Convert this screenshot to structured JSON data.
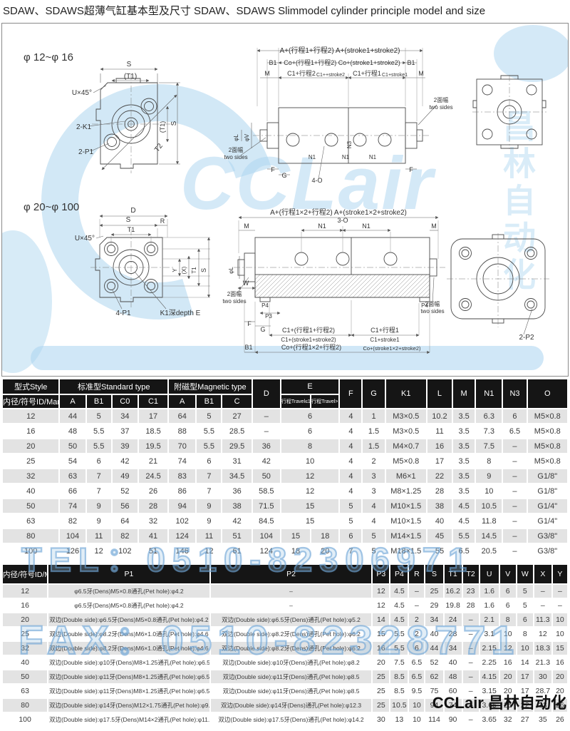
{
  "title": "SDAW、SDAWS超薄气缸基本型及尺寸 SDAW、SDAWS  Slimmodel cylinder principle model and size",
  "watermarks": {
    "tel": "TEL：0510-82306971",
    "fax": "FAX：0510-82328771",
    "brand_bottom": "CCLair 昌林自动化",
    "logo_text": "CCLair",
    "logo_cjk": "昌林自动化",
    "logo_color": "#a6d1ee",
    "outline_color": "#6ea5d7"
  },
  "diagram": {
    "range1": "φ 12~φ 16",
    "range2": "φ 20~φ 100",
    "labels": [
      [
        "φ 12~φ 16",
        30,
        52,
        15,
        "s",
        0
      ],
      [
        "S",
        178,
        60,
        10,
        "m",
        0
      ],
      [
        "(T1)",
        180,
        77,
        10,
        "m",
        0
      ],
      [
        "U×45°",
        126,
        100,
        10,
        "e",
        0
      ],
      [
        "2-K1",
        104,
        148,
        10,
        "s",
        0
      ],
      [
        "2-P1",
        107,
        183,
        10,
        "s",
        0
      ],
      [
        "(T1)",
        228,
        145,
        9,
        "m",
        -90
      ],
      [
        "S",
        244,
        140,
        10,
        "m",
        -90
      ],
      [
        "T2",
        222,
        176,
        10,
        "m",
        -52
      ],
      [
        "A+(行程1+行程2)  A+(stroke1+stroke2)",
        474,
        41,
        10,
        "m",
        0
      ],
      [
        "B1",
        380,
        58,
        9,
        "m",
        0
      ],
      [
        "Co+(行程1+行程2)  Co+(stroke1+stroke2)",
        477,
        58,
        9,
        "m",
        0
      ],
      [
        "B1",
        574,
        58,
        9,
        "m",
        0
      ],
      [
        "M",
        372,
        73,
        9,
        "m",
        0
      ],
      [
        "C1+行程2",
        420,
        73,
        9,
        "m",
        0
      ],
      [
        "C1++stroke2",
        461,
        74,
        7,
        "m",
        0
      ],
      [
        "C1+行程1",
        512,
        73,
        9,
        "m",
        0
      ],
      [
        "C1+stroke1",
        551,
        74,
        7,
        "m",
        0
      ],
      [
        "M",
        588,
        73,
        9,
        "m",
        0
      ],
      [
        "φL",
        331,
        160,
        8,
        "m",
        -90
      ],
      [
        "φV",
        346,
        160,
        8,
        "m",
        -90
      ],
      [
        "N3",
        490,
        170,
        8,
        "m",
        -90
      ],
      [
        "N1",
        435,
        190,
        8,
        "m",
        0
      ],
      [
        "N1",
        482,
        190,
        8,
        "m",
        0
      ],
      [
        "N1",
        520,
        190,
        8,
        "m",
        0
      ],
      [
        "F",
        380,
        208,
        9,
        "m",
        0
      ],
      [
        "G",
        396,
        216,
        9,
        "m",
        0
      ],
      [
        "4-O",
        442,
        223,
        9,
        "m",
        0
      ],
      [
        "F",
        574,
        208,
        9,
        "m",
        0
      ],
      [
        "2面幅",
        328,
        180,
        8,
        "m",
        0
      ],
      [
        "two sides",
        328,
        190,
        8,
        "m",
        0
      ],
      [
        "2面幅",
        616,
        110,
        8,
        "m",
        0
      ],
      [
        "two sides",
        616,
        120,
        8,
        "m",
        0
      ],
      [
        "φ 20~φ 100",
        30,
        262,
        15,
        "s",
        0
      ],
      [
        "D",
        184,
        265,
        10,
        "m",
        0
      ],
      [
        "S",
        177,
        278,
        10,
        "m",
        0
      ],
      [
        "R",
        225,
        280,
        9,
        "m",
        0
      ],
      [
        "T1",
        181,
        292,
        9,
        "m",
        0
      ],
      [
        "U×45°",
        130,
        304,
        10,
        "e",
        0
      ],
      [
        "4-P1",
        170,
        409,
        10,
        "m",
        0
      ],
      [
        "K1深depth E",
        250,
        409,
        10,
        "m",
        0
      ],
      [
        "Y",
        245,
        346,
        8,
        "m",
        -90
      ],
      [
        "(X)",
        258,
        346,
        8,
        "m",
        -90
      ],
      [
        "T1",
        272,
        346,
        8,
        "m",
        -90
      ],
      [
        "S",
        286,
        346,
        9,
        "m",
        -90
      ],
      [
        "A+(行程1×2+行程2)  A+(stroke1×2+stroke2)",
        472,
        268,
        10,
        "m",
        0
      ],
      [
        "M",
        343,
        287,
        9,
        "m",
        0
      ],
      [
        "N1",
        449,
        287,
        9,
        "m",
        0
      ],
      [
        "3-O",
        478,
        279,
        9,
        "m",
        0
      ],
      [
        "N1",
        511,
        287,
        9,
        "m",
        0
      ],
      [
        "M",
        606,
        287,
        9,
        "m",
        0
      ],
      [
        "φL",
        324,
        346,
        8,
        "m",
        -90
      ],
      [
        "W",
        342,
        367,
        9,
        "m",
        0
      ],
      [
        "2面幅",
        326,
        382,
        8,
        "m",
        0
      ],
      [
        "two sides",
        326,
        392,
        8,
        "m",
        0
      ],
      [
        "2面幅",
        604,
        396,
        8,
        "m",
        0
      ],
      [
        "two sides",
        604,
        406,
        8,
        "m",
        0
      ],
      [
        "P4",
        369,
        398,
        8,
        "m",
        0
      ],
      [
        "P4",
        593,
        398,
        8,
        "m",
        0
      ],
      [
        "P3",
        374,
        413,
        8,
        "m",
        0
      ],
      [
        "F",
        347,
        424,
        9,
        "m",
        0
      ],
      [
        "G",
        366,
        432,
        9,
        "m",
        0
      ],
      [
        "C1+(行程1+行程2)",
        430,
        433,
        9,
        "m",
        0
      ],
      [
        "C1+(stroke1+stroke2)",
        430,
        446,
        8,
        "m",
        0
      ],
      [
        "C1+行程1",
        537,
        433,
        9,
        "m",
        0
      ],
      [
        "C1+stroke1",
        537,
        446,
        8,
        "m",
        0
      ],
      [
        "B1",
        346,
        457,
        9,
        "m",
        0
      ],
      [
        "Co+(行程1×2+行程2)",
        434,
        457,
        9,
        "m",
        0
      ],
      [
        "Co+(stroke1×2+stroke2)",
        547,
        458,
        7.5,
        "m",
        0
      ],
      [
        "2-P2",
        736,
        443,
        10,
        "m",
        0
      ]
    ]
  },
  "table1": {
    "style_header": "型式Style",
    "id_header": "内径/符号ID/Mark",
    "standard_header": "标准型Standard type",
    "magnetic_header": "附磁型Magnetic type",
    "std_cols": [
      "A",
      "B1",
      "C0",
      "C1"
    ],
    "mag_cols": [
      "A",
      "B1",
      "C"
    ],
    "d_header": "D",
    "e_header": "E",
    "e_sub": [
      "行程Travel≤10",
      "行程Travel>10"
    ],
    "single_cols": [
      "F",
      "G",
      "K1",
      "L",
      "M",
      "N1",
      "N3",
      "O"
    ],
    "rows": [
      {
        "id": "12",
        "cells": [
          "44",
          "5",
          "34",
          "17",
          "64",
          "5",
          "27",
          "–"
        ],
        "e": [
          "6"
        ],
        "rest": [
          "4",
          "1",
          "M3×0.5",
          "10.2",
          "3.5",
          "6.3",
          "6",
          "M5×0.8"
        ]
      },
      {
        "id": "16",
        "cells": [
          "48",
          "5.5",
          "37",
          "18.5",
          "88",
          "5.5",
          "28.5",
          "–"
        ],
        "e": [
          "6"
        ],
        "rest": [
          "4",
          "1.5",
          "M3×0.5",
          "11",
          "3.5",
          "7.3",
          "6.5",
          "M5×0.8"
        ]
      },
      {
        "id": "20",
        "cells": [
          "50",
          "5.5",
          "39",
          "19.5",
          "70",
          "5.5",
          "29.5",
          "36"
        ],
        "e": [
          "8"
        ],
        "rest": [
          "4",
          "1.5",
          "M4×0.7",
          "16",
          "3.5",
          "7.5",
          "–",
          "M5×0.8"
        ]
      },
      {
        "id": "25",
        "cells": [
          "54",
          "6",
          "42",
          "21",
          "74",
          "6",
          "31",
          "42"
        ],
        "e": [
          "10"
        ],
        "rest": [
          "4",
          "2",
          "M5×0.8",
          "17",
          "3.5",
          "8",
          "–",
          "M5×0.8"
        ]
      },
      {
        "id": "32",
        "cells": [
          "63",
          "7",
          "49",
          "24.5",
          "83",
          "7",
          "34.5",
          "50"
        ],
        "e": [
          "12"
        ],
        "rest": [
          "4",
          "3",
          "M6×1",
          "22",
          "3.5",
          "9",
          "–",
          "G1/8\""
        ]
      },
      {
        "id": "40",
        "cells": [
          "66",
          "7",
          "52",
          "26",
          "86",
          "7",
          "36",
          "58.5"
        ],
        "e": [
          "12"
        ],
        "rest": [
          "4",
          "3",
          "M8×1.25",
          "28",
          "3.5",
          "10",
          "–",
          "G1/8\""
        ]
      },
      {
        "id": "50",
        "cells": [
          "74",
          "9",
          "56",
          "28",
          "94",
          "9",
          "38",
          "71.5"
        ],
        "e": [
          "15"
        ],
        "rest": [
          "5",
          "4",
          "M10×1.5",
          "38",
          "4.5",
          "10.5",
          "–",
          "G1/4\""
        ]
      },
      {
        "id": "63",
        "cells": [
          "82",
          "9",
          "64",
          "32",
          "102",
          "9",
          "42",
          "84.5"
        ],
        "e": [
          "15"
        ],
        "rest": [
          "5",
          "4",
          "M10×1.5",
          "40",
          "4.5",
          "11.8",
          "–",
          "G1/4\""
        ]
      },
      {
        "id": "80",
        "cells": [
          "104",
          "11",
          "82",
          "41",
          "124",
          "11",
          "51",
          "104"
        ],
        "e": [
          "15",
          "18"
        ],
        "rest": [
          "6",
          "5",
          "M14×1.5",
          "45",
          "5.5",
          "14.5",
          "–",
          "G3/8\""
        ]
      },
      {
        "id": "100",
        "cells": [
          "126",
          "12",
          "102",
          "51",
          "146",
          "12",
          "61",
          "124"
        ],
        "e": [
          "18",
          "20"
        ],
        "rest": [
          "7",
          "5",
          "M18×1.5",
          "55",
          "6.5",
          "20.5",
          "–",
          "G3/8\""
        ]
      }
    ]
  },
  "table2": {
    "id_header": "内径/符号ID/Mark",
    "p_headers": [
      "P1",
      "P2"
    ],
    "dim_headers": [
      "P3",
      "P4",
      "R",
      "S",
      "T1",
      "T2",
      "U",
      "V",
      "W",
      "X",
      "Y"
    ],
    "rows": [
      {
        "id": "12",
        "p1": "φ6.5牙(Dens)M5×0.8通孔(Pet hole):φ4.2",
        "p2": "–",
        "vals": [
          "12",
          "4.5",
          "–",
          "25",
          "16.2",
          "23",
          "1.6",
          "6",
          "5",
          "–",
          "–"
        ]
      },
      {
        "id": "16",
        "p1": "φ6.5牙(Dens)M5×0.8通孔(Pet hole):φ4.2",
        "p2": "–",
        "vals": [
          "12",
          "4.5",
          "–",
          "29",
          "19.8",
          "28",
          "1.6",
          "6",
          "5",
          "–",
          "–"
        ]
      },
      {
        "id": "20",
        "p1": "双边(Double side):φ6.5牙(Dens)M5×0.8通孔(Pet hole):φ4.2",
        "p2": "双边(Double side):φ6.5牙(Dens)通孔(Pet hole):φ5.2",
        "vals": [
          "14",
          "4.5",
          "2",
          "34",
          "24",
          "–",
          "2.1",
          "8",
          "6",
          "11.3",
          "10"
        ]
      },
      {
        "id": "25",
        "p1": "双边(Double side):φ8.2牙(Dens)M6×1.0通孔(Pet hole):φ4.6",
        "p2": "双边(Double side):φ8.2牙(Dens)通孔(Pet hole):φ6.2",
        "vals": [
          "15",
          "5.5",
          "2",
          "40",
          "28",
          "–",
          "3.1",
          "10",
          "8",
          "12",
          "10"
        ]
      },
      {
        "id": "32",
        "p1": "双边(Double side):φ8.2牙(Dens)M6×1.0通孔(Pet hole):φ4.6",
        "p2": "双边(Double side):φ8.2牙(Dens)通孔(Pet hole):φ6.2",
        "vals": [
          "16",
          "5.5",
          "6",
          "44",
          "34",
          "–",
          "2.15",
          "12",
          "10",
          "18.3",
          "15"
        ]
      },
      {
        "id": "40",
        "p1": "双边(Double side):φ10牙(Dens)M8×1.25通孔(Pet hole):φ6.5",
        "p2": "双边(Double side):φ10牙(Dens)通孔(Pet hole):φ8.2",
        "vals": [
          "20",
          "7.5",
          "6.5",
          "52",
          "40",
          "–",
          "2.25",
          "16",
          "14",
          "21.3",
          "16"
        ]
      },
      {
        "id": "50",
        "p1": "双边(Double side):φ11牙(Dens)M8×1.25通孔(Pet hole):φ6.5",
        "p2": "双边(Double side):φ11牙(Dens)通孔(Pet hole):φ8.5",
        "vals": [
          "25",
          "8.5",
          "6.5",
          "62",
          "48",
          "–",
          "4.15",
          "20",
          "17",
          "30",
          "20"
        ]
      },
      {
        "id": "63",
        "p1": "双边(Double side):φ11牙(Dens)M8×1.25通孔(Pet hole):φ6.5",
        "p2": "双边(Double side):φ11牙(Dens)通孔(Pet hole):φ8.5",
        "vals": [
          "25",
          "8.5",
          "9.5",
          "75",
          "60",
          "–",
          "3.15",
          "20",
          "17",
          "28.7",
          "20"
        ]
      },
      {
        "id": "80",
        "p1": "双边(Double side):φ14牙(Dens)M12×1.75通孔(Pet hole):φ9.2",
        "p2": "双边(Double side):φ14牙(Dens)通孔(Pet hole):φ12.3",
        "vals": [
          "25",
          "10.5",
          "10",
          "94",
          "74",
          "–",
          "3.65",
          "25",
          "22",
          "33",
          "26"
        ]
      },
      {
        "id": "100",
        "p1": "双边(Double side):φ17.5牙(Dens)M14×2通孔(Pet hole):φ11.3",
        "p2": "双边(Double side):φ17.5牙(Dens)通孔(Pet hole):φ14.2",
        "vals": [
          "30",
          "13",
          "10",
          "114",
          "90",
          "–",
          "3.65",
          "32",
          "27",
          "35",
          "26"
        ]
      }
    ]
  }
}
